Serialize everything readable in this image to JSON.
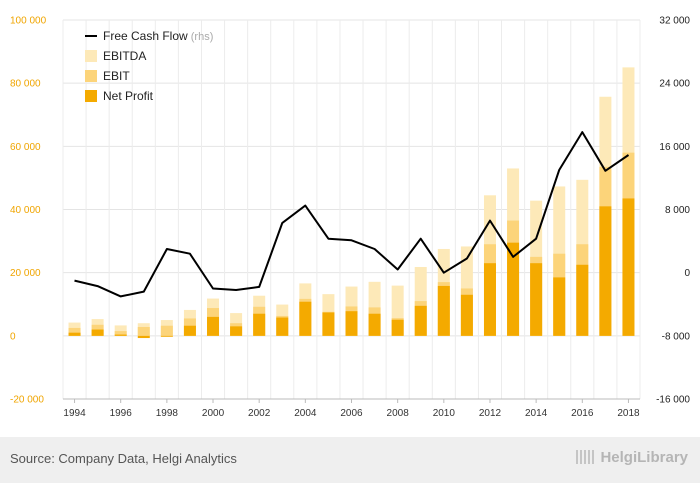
{
  "chart_data": {
    "type": "bar+line",
    "x": [
      1994,
      1995,
      1996,
      1997,
      1998,
      1999,
      2000,
      2001,
      2002,
      2003,
      2004,
      2005,
      2006,
      2007,
      2008,
      2009,
      2010,
      2011,
      2012,
      2013,
      2014,
      2015,
      2016,
      2017,
      2018
    ],
    "x_tick_labels": [
      "1994",
      "1996",
      "1998",
      "2000",
      "2002",
      "2004",
      "2006",
      "2008",
      "2010",
      "2012",
      "2014",
      "2016",
      "2018"
    ],
    "y_left": {
      "min": -20000,
      "max": 100000,
      "ticks": [
        "-20 000",
        "0",
        "20 000",
        "40 000",
        "60 000",
        "80 000",
        "100 000"
      ]
    },
    "y_right": {
      "min": -16000,
      "max": 32000,
      "ticks": [
        "-16 000",
        "-8 000",
        "0",
        "8 000",
        "16 000",
        "24 000",
        "32 000"
      ]
    },
    "grid": true,
    "legend_position": "top-left",
    "series": [
      {
        "name": "EBITDA",
        "kind": "bar",
        "axis": "left",
        "color": "#fde9b8",
        "values": [
          4200,
          5300,
          3300,
          4000,
          5000,
          8200,
          11800,
          7200,
          12700,
          9900,
          16600,
          13200,
          15600,
          17100,
          15900,
          21800,
          27500,
          28300,
          44500,
          53000,
          42800,
          47300,
          49400,
          75700,
          85000
        ]
      },
      {
        "name": "EBIT",
        "kind": "bar",
        "axis": "left",
        "color": "#fcd47a",
        "values": [
          2500,
          3500,
          1500,
          2800,
          3200,
          5500,
          8800,
          4000,
          9200,
          6300,
          11700,
          7600,
          9300,
          9000,
          5600,
          11000,
          17000,
          15000,
          29000,
          36500,
          25000,
          26000,
          29000,
          53500,
          58000
        ]
      },
      {
        "name": "Net Profit",
        "kind": "bar",
        "axis": "left",
        "color": "#f4aa00",
        "values": [
          1000,
          2000,
          400,
          -700,
          -300,
          3200,
          6000,
          3000,
          7000,
          5800,
          10800,
          7400,
          7800,
          7000,
          5100,
          9500,
          15800,
          13000,
          23000,
          29500,
          23000,
          18500,
          22500,
          41000,
          43500
        ]
      },
      {
        "name": "Free Cash Flow",
        "sub": "(rhs)",
        "kind": "line",
        "axis": "right",
        "color": "#000000",
        "values": [
          -1000,
          -1700,
          -3000,
          -2400,
          3000,
          2400,
          -2000,
          -2200,
          -1800,
          6300,
          8500,
          4300,
          4100,
          3000,
          400,
          4300,
          0,
          1800,
          6600,
          2000,
          4300,
          13000,
          17800,
          12900,
          14900
        ]
      }
    ]
  },
  "footer": {
    "source": "Source: Company Data, Helgi Analytics",
    "logo": "HelgiLibrary"
  }
}
